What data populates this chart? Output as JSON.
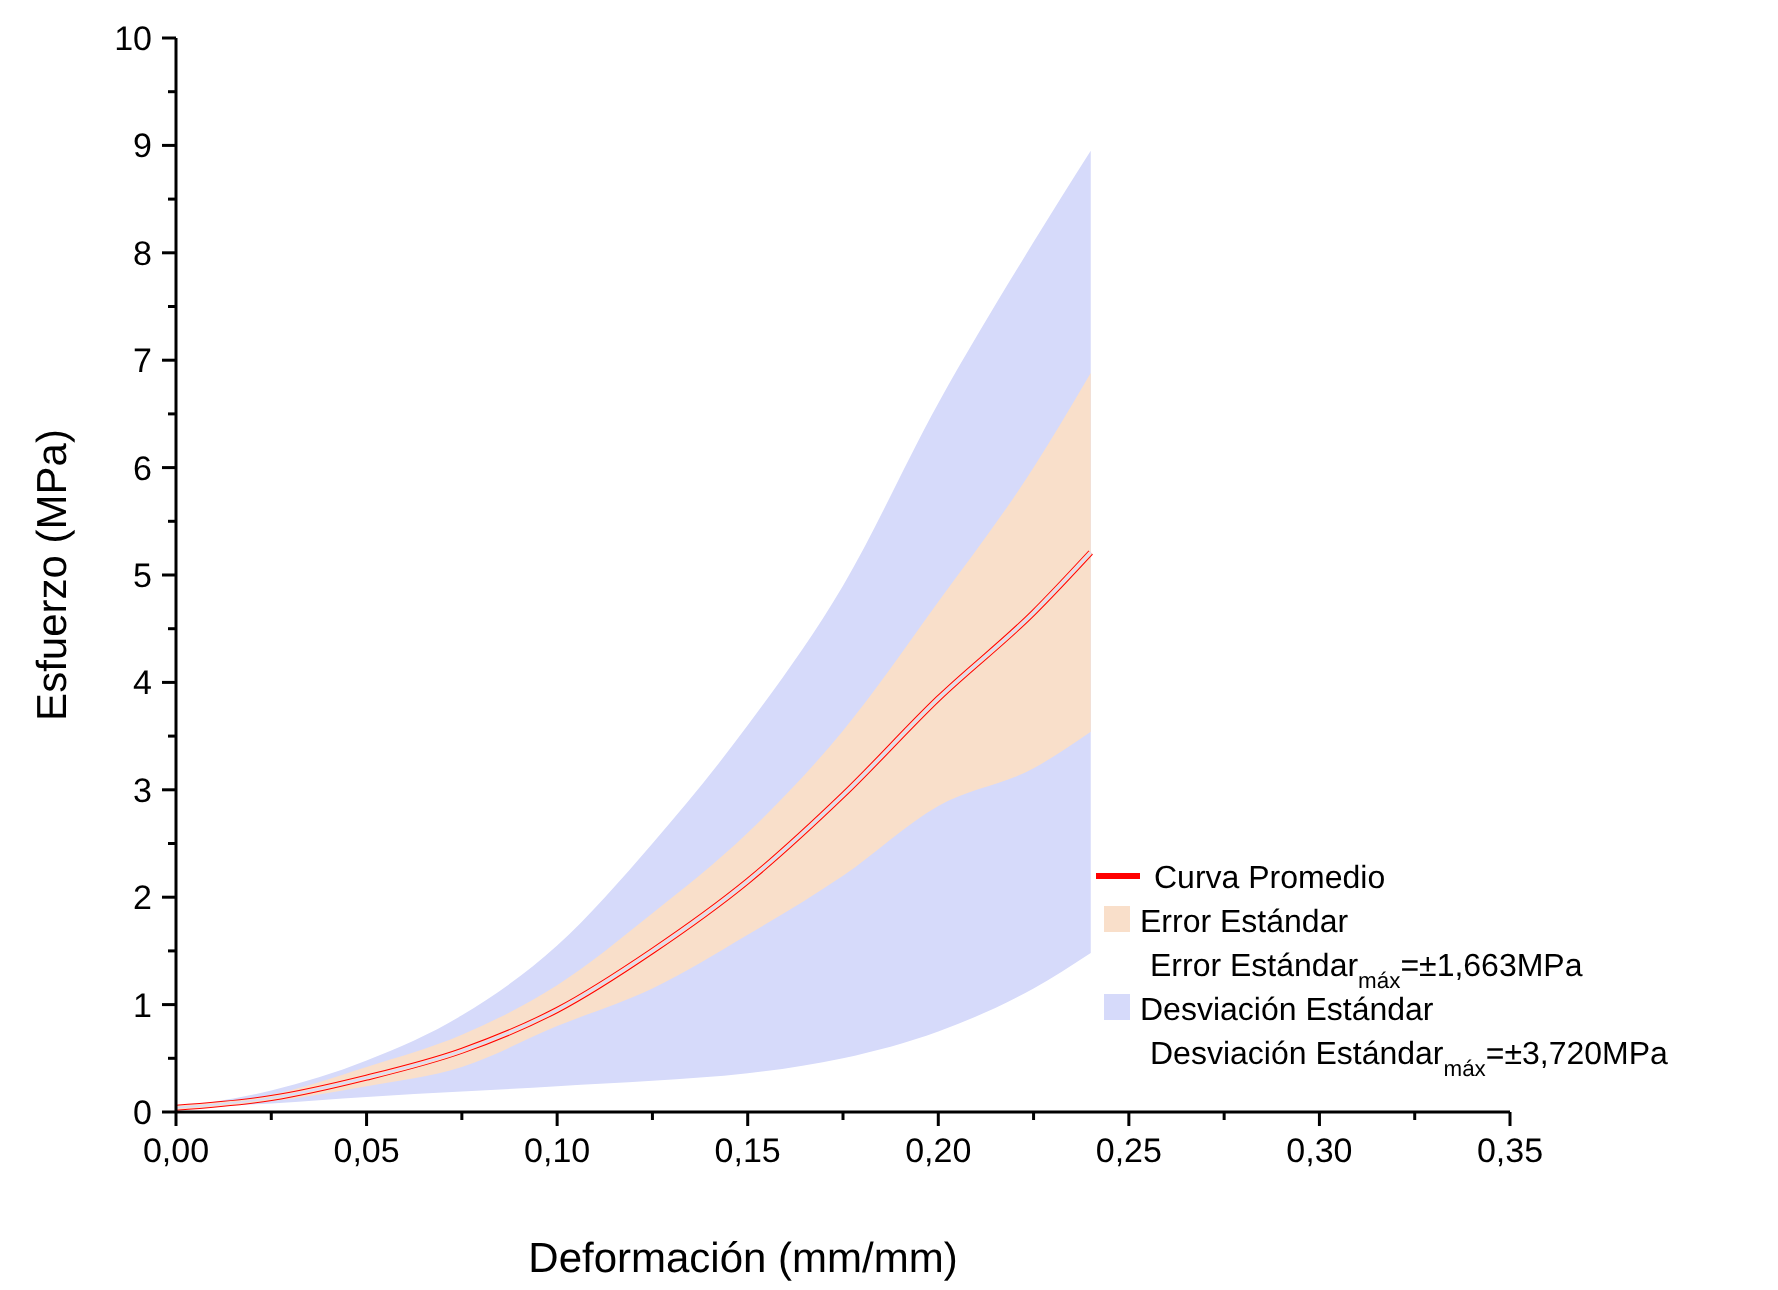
{
  "chart_data": {
    "type": "line",
    "xlabel": "Deformación (mm/mm)",
    "ylabel": "Esfuerzo (MPa)",
    "x": [
      0,
      0.025,
      0.05,
      0.075,
      0.1,
      0.125,
      0.15,
      0.175,
      0.2,
      0.225,
      0.24
    ],
    "series": [
      {
        "name": "Curva Promedio",
        "color": "#ff0000",
        "values": [
          0.04,
          0.13,
          0.32,
          0.57,
          0.95,
          1.5,
          2.15,
          2.95,
          3.85,
          4.65,
          5.21
        ]
      },
      {
        "name": "Error Estándar",
        "type": "line",
        "color": "#f9dfca",
        "values": [
          0.04,
          0.13,
          0.32,
          0.57,
          0.95,
          1.5,
          2.15,
          2.95,
          3.85,
          4.65,
          5.21
        ],
        "upper": [
          0.04,
          0.16,
          0.42,
          0.72,
          1.18,
          1.85,
          2.6,
          3.55,
          4.75,
          6.0,
          6.88
        ],
        "lower": [
          0.04,
          0.1,
          0.24,
          0.42,
          0.8,
          1.15,
          1.65,
          2.2,
          2.85,
          3.2,
          3.54
        ]
      },
      {
        "name": "Desviación Estándar",
        "type": "line",
        "color": "#d6dafa",
        "values": [
          0.04,
          0.13,
          0.32,
          0.57,
          0.95,
          1.5,
          2.15,
          2.95,
          3.85,
          4.65,
          5.21
        ],
        "upper": [
          0.04,
          0.2,
          0.48,
          0.9,
          1.55,
          2.5,
          3.6,
          4.9,
          6.6,
          8.1,
          8.95
        ],
        "lower": [
          0.04,
          0.08,
          0.14,
          0.19,
          0.24,
          0.29,
          0.36,
          0.5,
          0.75,
          1.15,
          1.48
        ]
      }
    ],
    "annotations": [
      "Error Estándar$_{máx}$=±1,663MPa",
      "Desviación Estándar$_{máx}$=±3,720MPa"
    ],
    "xlim": [
      0,
      0.35
    ],
    "xticks": [
      {
        "value": 0,
        "label": "0,00"
      },
      {
        "value": 0.025,
        "label": null
      },
      {
        "value": 0.05,
        "label": "0,05"
      },
      {
        "value": 0.075,
        "label": null
      },
      {
        "value": 0.1,
        "label": "0,10"
      },
      {
        "value": 0.125,
        "label": null
      },
      {
        "value": 0.15,
        "label": "0,15"
      },
      {
        "value": 0.175,
        "label": null
      },
      {
        "value": 0.2,
        "label": "0,20"
      },
      {
        "value": 0.225,
        "label": null
      },
      {
        "value": 0.25,
        "label": "0,25"
      },
      {
        "value": 0.275,
        "label": null
      },
      {
        "value": 0.3,
        "label": "0,30"
      },
      {
        "value": 0.325,
        "label": null
      },
      {
        "value": 0.35,
        "label": "0,35"
      }
    ],
    "ylim": [
      0,
      10
    ],
    "yticks": [
      0,
      {
        "value": 0.5,
        "label": null
      },
      1,
      {
        "value": 1.5,
        "label": null
      },
      2,
      {
        "value": 2.5,
        "label": null
      },
      3,
      {
        "value": 3.5,
        "label": null
      },
      4,
      {
        "value": 4.5,
        "label": null
      },
      5,
      {
        "value": 5.5,
        "label": null
      },
      6,
      {
        "value": 6.5,
        "label": null
      },
      7,
      {
        "value": 7.5,
        "label": null
      },
      8,
      {
        "value": 8.5,
        "label": null
      },
      9,
      {
        "value": 9.5,
        "label": null
      },
      10
    ],
    "grid": false,
    "legend": "bottom right",
    "marker": "none",
    "line_style": "solid"
  }
}
